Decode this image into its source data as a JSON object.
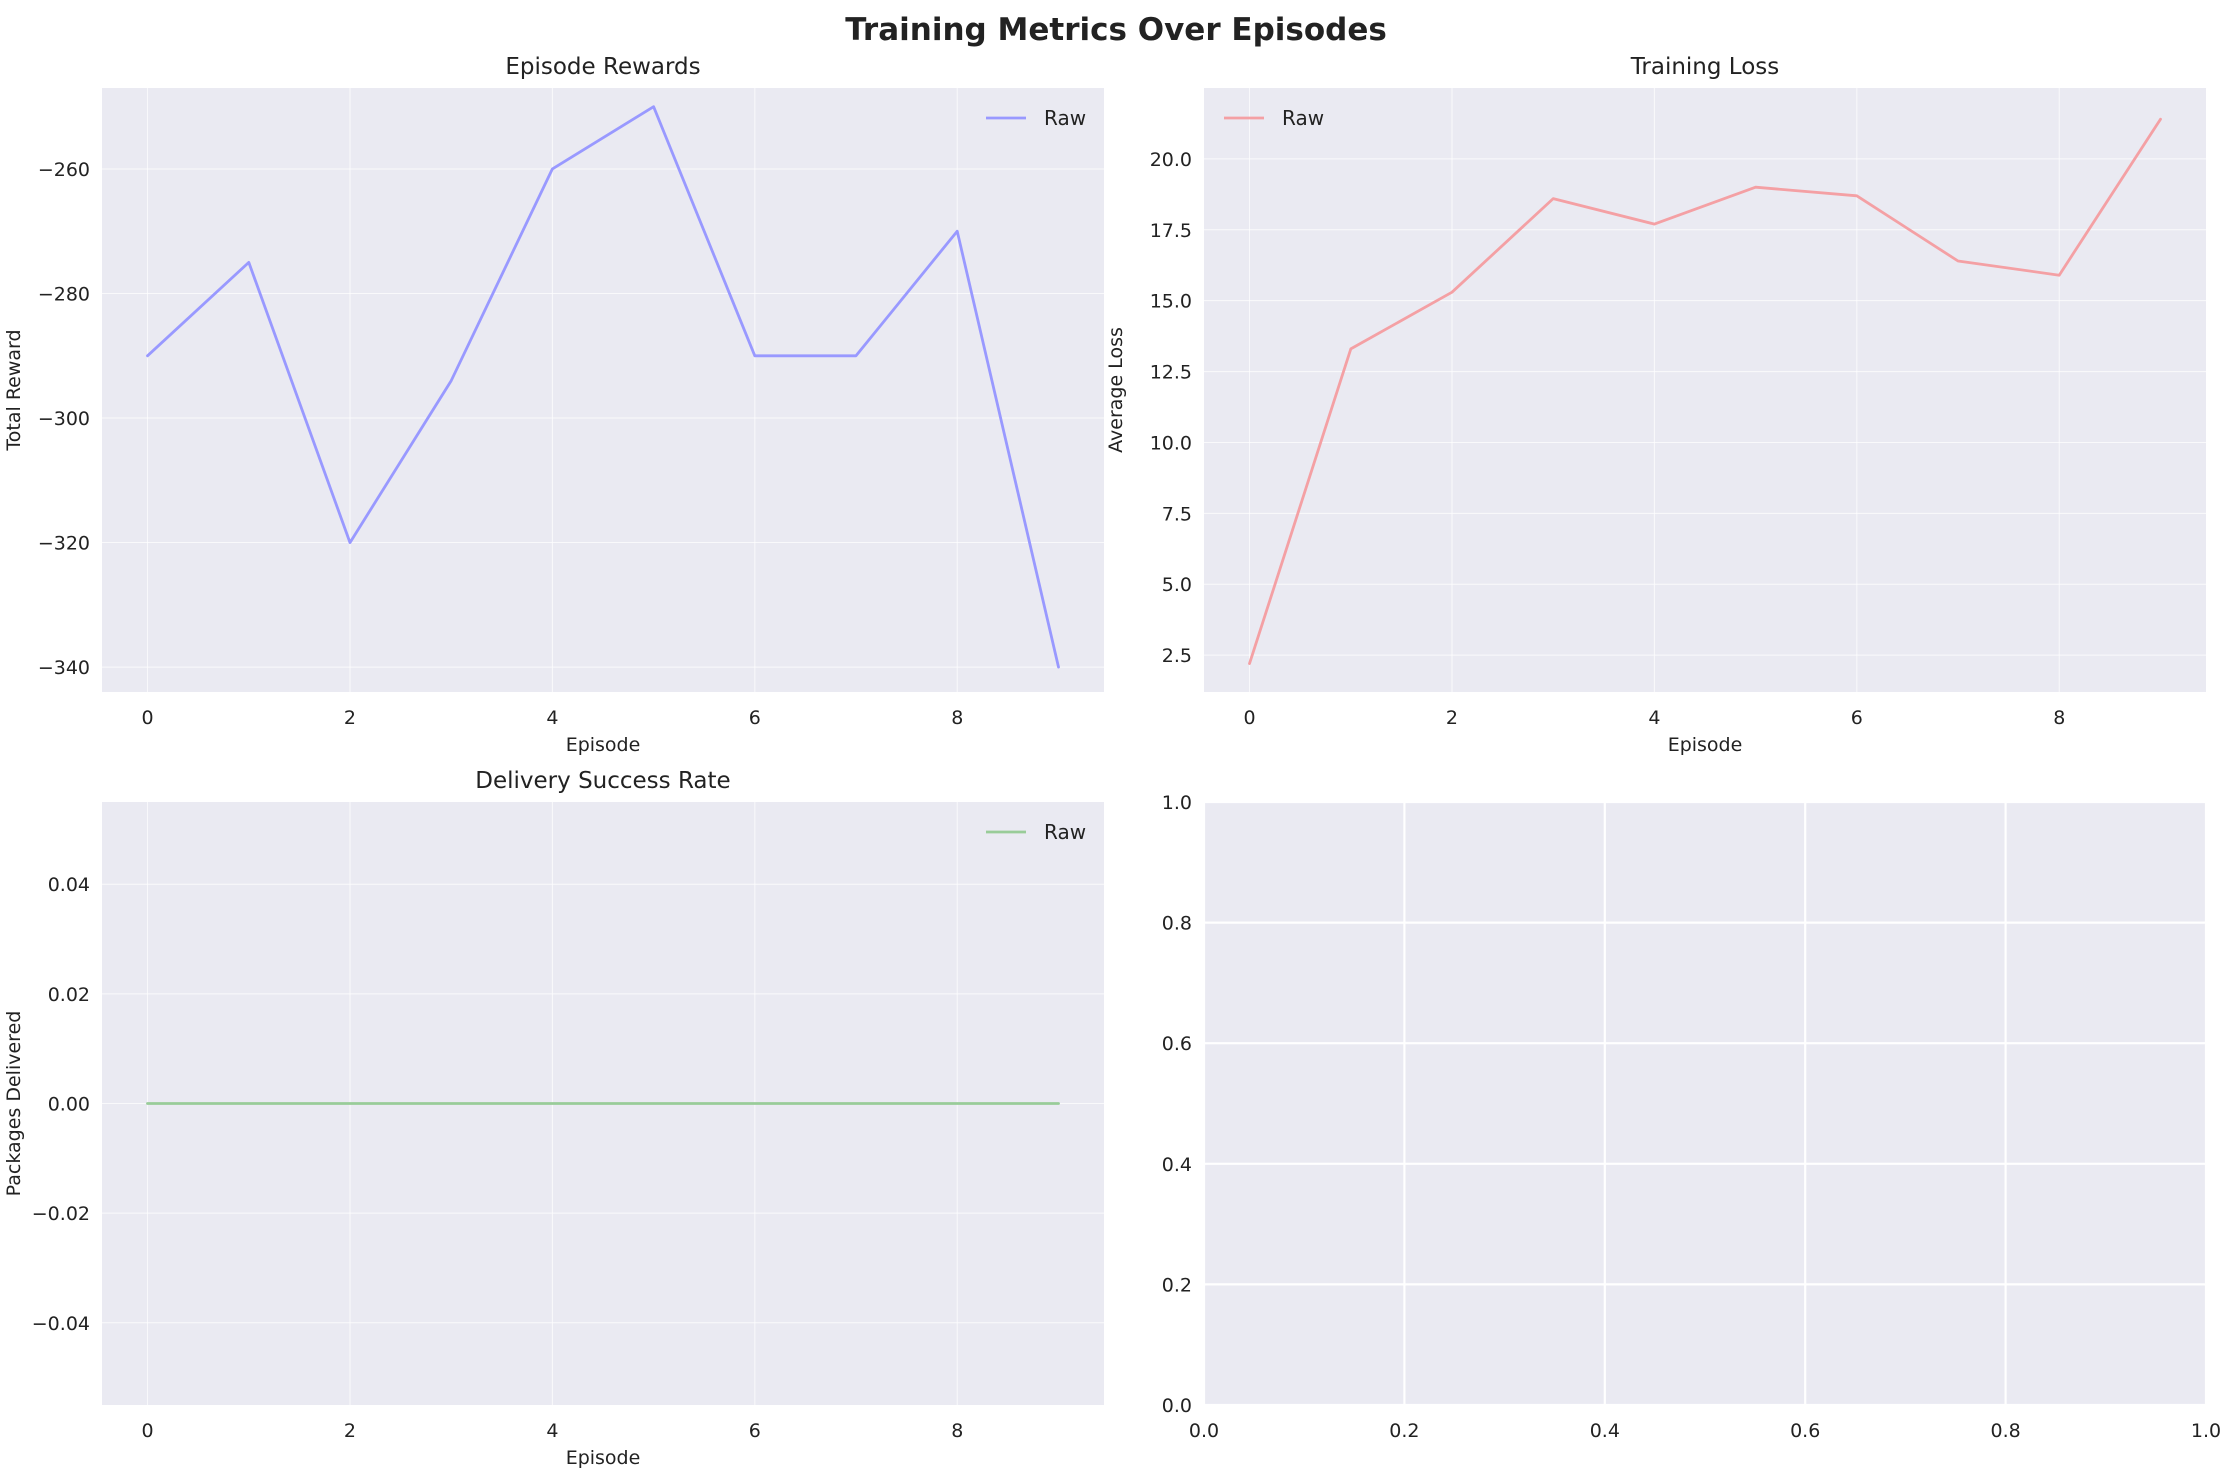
{
  "figure": {
    "title": "Training Metrics Over Episodes",
    "background": "#ffffff",
    "axes_face": "#eaeaf2",
    "grid_color": "#ffffff",
    "text_color": "#222222"
  },
  "chart_data": [
    {
      "type": "line",
      "title": "Episode Rewards",
      "xlabel": "Episode",
      "ylabel": "Total Reward",
      "xlim": [
        -0.45,
        9.45
      ],
      "ylim": [
        -344,
        -247
      ],
      "xticks": [
        0,
        2,
        4,
        6,
        8
      ],
      "xtick_labels": [
        "0",
        "2",
        "4",
        "6",
        "8"
      ],
      "yticks": [
        -340,
        -320,
        -300,
        -280,
        -260
      ],
      "ytick_labels": [
        "−340",
        "−320",
        "−300",
        "−280",
        "−260"
      ],
      "grid": true,
      "legend": "top-right",
      "series": [
        {
          "name": "Raw",
          "color": "#9999ff",
          "x": [
            0,
            1,
            2,
            3,
            4,
            5,
            6,
            7,
            8,
            9
          ],
          "y": [
            -290,
            -275,
            -320,
            -294,
            -260,
            -250,
            -290,
            -290,
            -270,
            -340
          ]
        }
      ]
    },
    {
      "type": "line",
      "title": "Training Loss",
      "xlabel": "Episode",
      "ylabel": "Average Loss",
      "xlim": [
        -0.45,
        9.45
      ],
      "ylim": [
        1.2,
        22.5
      ],
      "xticks": [
        0,
        2,
        4,
        6,
        8
      ],
      "xtick_labels": [
        "0",
        "2",
        "4",
        "6",
        "8"
      ],
      "yticks": [
        2.5,
        5.0,
        7.5,
        10.0,
        12.5,
        15.0,
        17.5,
        20.0
      ],
      "ytick_labels": [
        "2.5",
        "5.0",
        "7.5",
        "10.0",
        "12.5",
        "15.0",
        "17.5",
        "20.0"
      ],
      "grid": true,
      "legend": "top-left",
      "series": [
        {
          "name": "Raw",
          "color": "#f4a0a4",
          "x": [
            0,
            1,
            2,
            3,
            4,
            5,
            6,
            7,
            8,
            9
          ],
          "y": [
            2.2,
            13.3,
            15.3,
            18.6,
            17.7,
            19.0,
            18.7,
            16.4,
            15.9,
            21.4
          ]
        }
      ]
    },
    {
      "type": "line",
      "title": "Delivery Success Rate",
      "xlabel": "Episode",
      "ylabel": "Packages Delivered",
      "xlim": [
        -0.45,
        9.45
      ],
      "ylim": [
        -0.055,
        0.055
      ],
      "xticks": [
        0,
        2,
        4,
        6,
        8
      ],
      "xtick_labels": [
        "0",
        "2",
        "4",
        "6",
        "8"
      ],
      "yticks": [
        -0.04,
        -0.02,
        0.0,
        0.02,
        0.04
      ],
      "ytick_labels": [
        "−0.04",
        "−0.02",
        "0.00",
        "0.02",
        "0.04"
      ],
      "grid": true,
      "legend": "top-right",
      "series": [
        {
          "name": "Raw",
          "color": "#99cc99",
          "x": [
            0,
            1,
            2,
            3,
            4,
            5,
            6,
            7,
            8,
            9
          ],
          "y": [
            0,
            0,
            0,
            0,
            0,
            0,
            0,
            0,
            0,
            0
          ]
        }
      ]
    },
    {
      "type": "line",
      "title": "",
      "xlabel": "",
      "ylabel": "",
      "xlim": [
        0,
        1
      ],
      "ylim": [
        0,
        1
      ],
      "xticks": [
        0.0,
        0.2,
        0.4,
        0.6,
        0.8,
        1.0
      ],
      "xtick_labels": [
        "0.0",
        "0.2",
        "0.4",
        "0.6",
        "0.8",
        "1.0"
      ],
      "yticks": [
        0.0,
        0.2,
        0.4,
        0.6,
        0.8,
        1.0
      ],
      "ytick_labels": [
        "0.0",
        "0.2",
        "0.4",
        "0.6",
        "0.8",
        "1.0"
      ],
      "grid": true,
      "legend": "none",
      "series": []
    }
  ]
}
